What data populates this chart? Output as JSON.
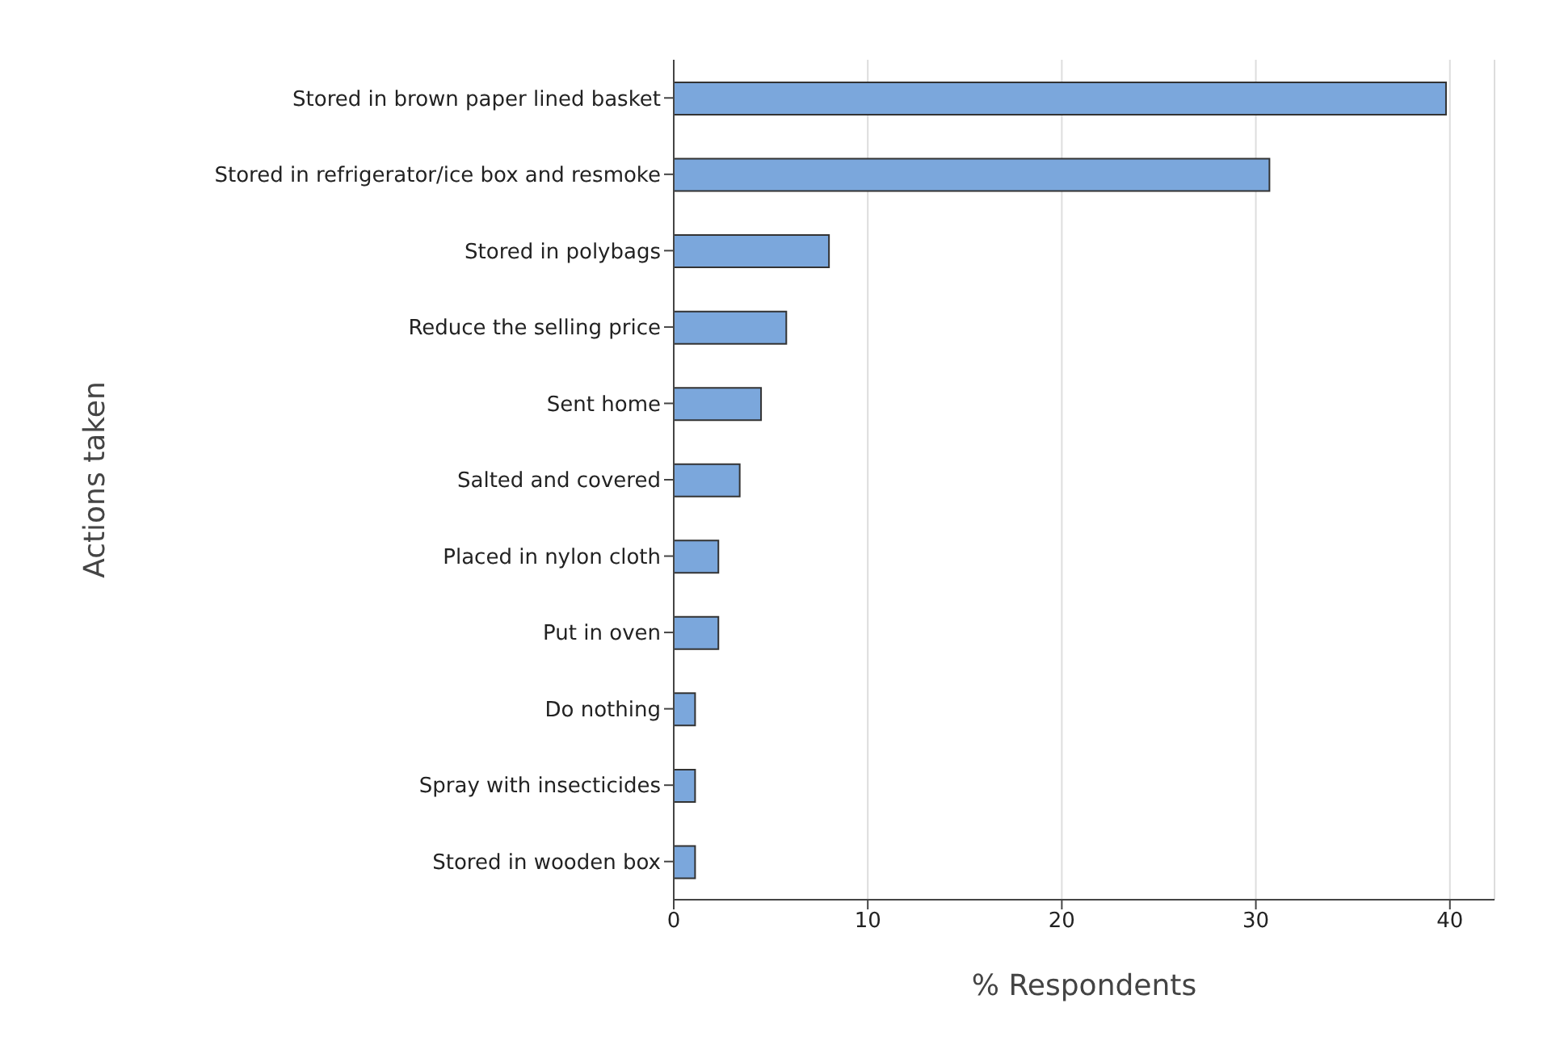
{
  "chart_data": {
    "type": "bar",
    "orientation": "horizontal",
    "xlabel": "% Respondents",
    "ylabel": "Actions taken",
    "categories": [
      "Stored in brown paper lined basket",
      "Stored in refrigerator/ice box and resmoke",
      "Stored in polybags",
      "Reduce the selling price",
      "Sent home",
      "Salted and covered",
      "Placed in nylon cloth",
      "Put in oven",
      "Do nothing",
      "Spray with insecticides",
      "Stored in wooden box"
    ],
    "values": [
      39.8,
      30.7,
      8.0,
      5.8,
      4.5,
      3.4,
      2.3,
      2.3,
      1.1,
      1.1,
      1.1
    ],
    "color": "#7ba7dc",
    "xlim": [
      0,
      42.3
    ],
    "xticks": [
      0,
      10,
      20,
      30,
      40
    ],
    "grid": "x"
  }
}
